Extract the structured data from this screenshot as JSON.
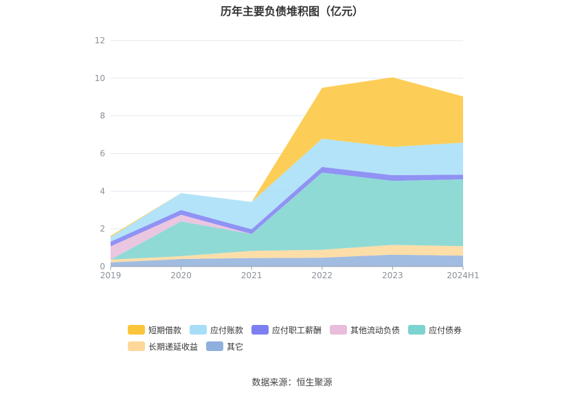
{
  "title": "历年主要负债堆积图（亿元）",
  "source": "数据来源：恒生聚源",
  "chart_data": {
    "type": "area",
    "stacked": true,
    "title": "历年主要负债堆积图（亿元）",
    "xlabel": "",
    "ylabel": "",
    "categories": [
      "2019",
      "2020",
      "2021",
      "2022",
      "2023",
      "2024H1"
    ],
    "ylim": [
      0,
      12
    ],
    "yticks": [
      0,
      2,
      4,
      6,
      8,
      10,
      12
    ],
    "grid": true,
    "legend_position": "bottom",
    "series": [
      {
        "name": "其它",
        "color": "#8fb0dc",
        "values": [
          0.22,
          0.4,
          0.45,
          0.47,
          0.63,
          0.58
        ]
      },
      {
        "name": "长期递延收益",
        "color": "#fdd89a",
        "values": [
          0.15,
          0.15,
          0.38,
          0.42,
          0.52,
          0.5
        ]
      },
      {
        "name": "应付债券",
        "color": "#7dd3cf",
        "values": [
          0.0,
          1.85,
          0.9,
          4.1,
          3.4,
          3.55
        ]
      },
      {
        "name": "其他流动负债",
        "color": "#e8bcdb",
        "values": [
          0.7,
          0.35,
          0.0,
          0.0,
          0.0,
          0.0
        ]
      },
      {
        "name": "应付职工薪酬",
        "color": "#7c7ff2",
        "values": [
          0.25,
          0.25,
          0.25,
          0.3,
          0.3,
          0.25
        ]
      },
      {
        "name": "应付账款",
        "color": "#a6def7",
        "values": [
          0.25,
          0.9,
          1.45,
          1.5,
          1.5,
          1.7
        ]
      },
      {
        "name": "短期借款",
        "color": "#fbc53a",
        "values": [
          0.06,
          0.0,
          0.0,
          2.7,
          3.7,
          2.45
        ]
      }
    ],
    "legend_order": [
      "短期借款",
      "应付账款",
      "应付职工薪酬",
      "其他流动负债",
      "应付债券",
      "长期递延收益",
      "其它"
    ]
  }
}
